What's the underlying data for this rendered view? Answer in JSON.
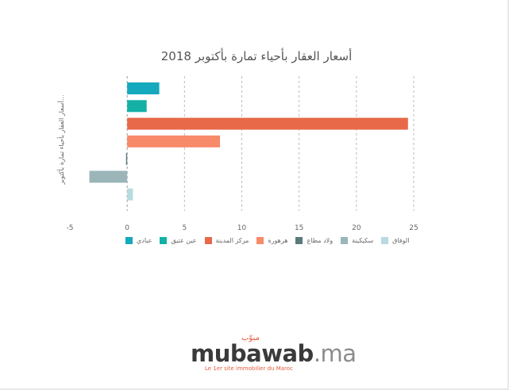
{
  "chart_data": {
    "type": "bar",
    "orientation": "horizontal",
    "title": "أسعار العقار بأحياء تمارة بأكتوبر 2018",
    "ylabel": "أسعار العقار بأحياء تمارة بأكتوبر...",
    "xlabel": "",
    "xlim": [
      -5,
      25
    ],
    "xticks": [
      -5,
      0,
      5,
      10,
      15,
      20,
      25
    ],
    "grid": "vertical-dashed",
    "legend_position": "bottom",
    "series": [
      {
        "name": "عبادي",
        "value": 2.8,
        "color": "#14a9bd"
      },
      {
        "name": "عين عتيق",
        "value": 1.7,
        "color": "#14b0a6"
      },
      {
        "name": "مركز المدينة",
        "value": 24.5,
        "color": "#e7694a"
      },
      {
        "name": "هرهورة",
        "value": 8.1,
        "color": "#f78a69"
      },
      {
        "name": "ولاد مطاع",
        "value": -0.1,
        "color": "#5a7a7e"
      },
      {
        "name": "سكيكينة",
        "value": -3.3,
        "color": "#9bb5b9"
      },
      {
        "name": "الوفاق",
        "value": 0.5,
        "color": "#b7dbe1"
      }
    ]
  },
  "logo": {
    "arabic": "مبوّب",
    "main": "mubawab",
    "suffix": ".ma",
    "tagline": "Le 1er site immobilier du Maroc"
  }
}
